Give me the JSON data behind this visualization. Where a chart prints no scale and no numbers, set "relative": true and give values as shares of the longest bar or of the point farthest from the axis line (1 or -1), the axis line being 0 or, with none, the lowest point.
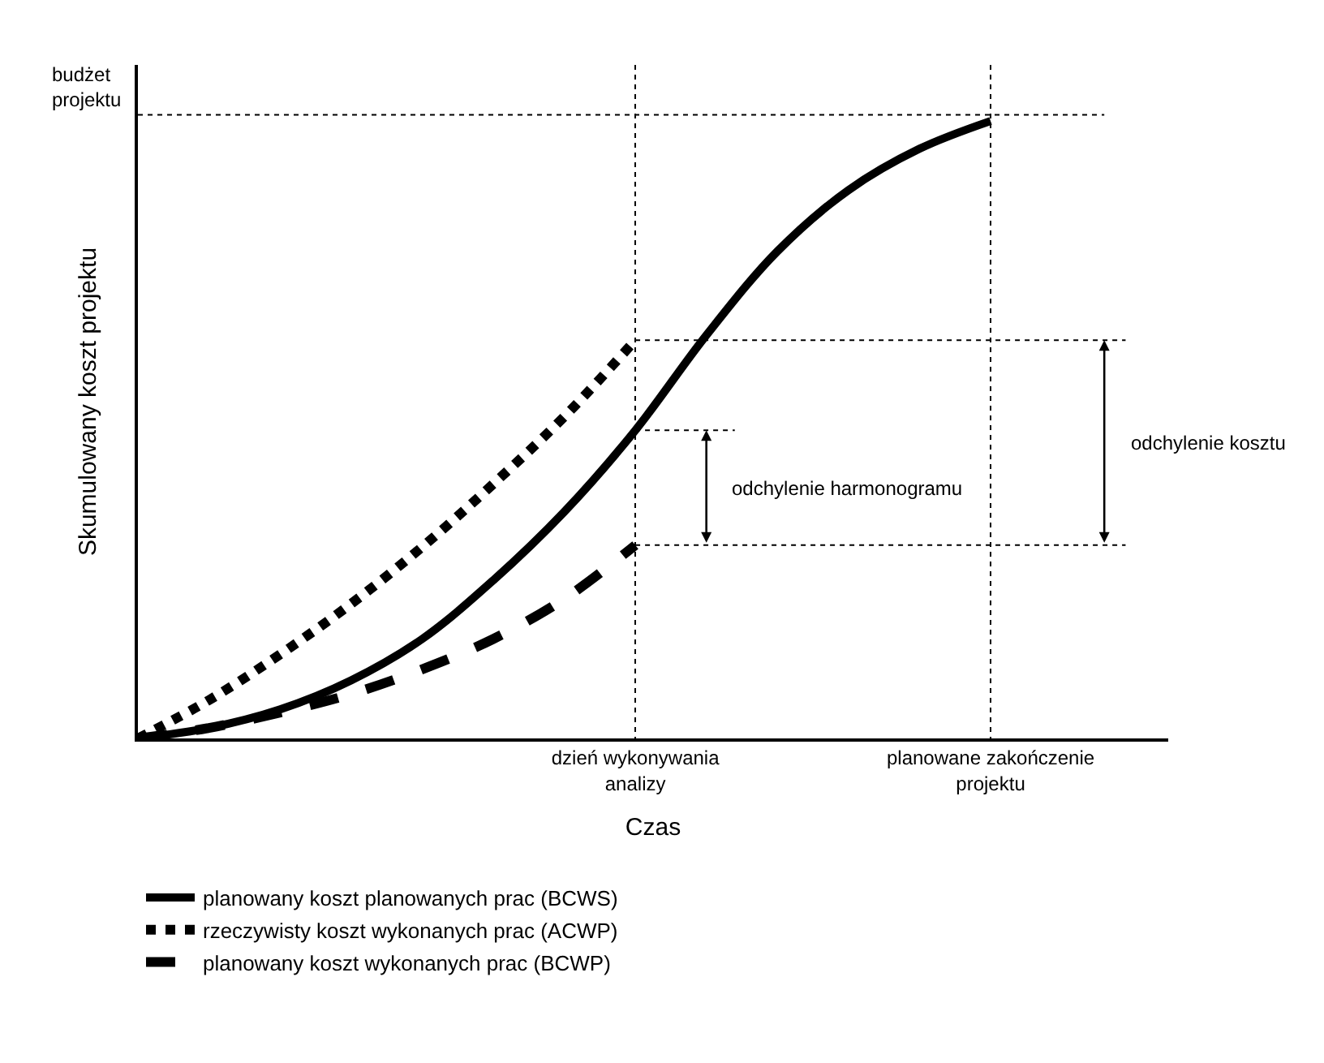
{
  "chart_data": {
    "type": "line",
    "relative": true,
    "xlabel": "Czas",
    "ylabel": "Skumulowany koszt projektu",
    "categories": [
      null,
      null,
      null,
      null,
      null,
      null,
      null,
      "dzień wykonywania\nanalizy",
      null,
      null,
      null,
      null,
      "planowane zakończenie\nprojektu",
      null,
      null
    ],
    "grid": "x",
    "legend": "bottom",
    "marker": "none",
    "ref_lines": [
      {
        "axis": "y",
        "value": 1.01,
        "label": "budżet\nprojektu",
        "line_style": "dotted",
        "color": "#000000"
      },
      {
        "axis": "y",
        "value": 0.645,
        "line_style": "dotted",
        "color": "#000000"
      },
      {
        "axis": "y",
        "value": 0.499,
        "line_style": "dotted",
        "color": "#000000"
      },
      {
        "axis": "y",
        "value": 0.313,
        "line_style": "dotted",
        "color": "#000000"
      }
    ],
    "annotations": [
      "odchylenie harmonogramu",
      "odchylenie kosztu"
    ],
    "series": [
      {
        "name": "planowany koszt planowanych prac (BCWS)",
        "color": "#000000",
        "line_style": "solid",
        "values": [
          0,
          0.017,
          0.047,
          0.094,
          0.161,
          0.256,
          0.367,
          0.499,
          0.653,
          0.789,
          0.888,
          0.955,
          1.0,
          null,
          null
        ]
      },
      {
        "name": "rzeczywisty koszt wykonanych prac (ACWP)",
        "color": "#000000",
        "line_style": "dotted",
        "values": [
          0,
          0.062,
          0.136,
          0.218,
          0.31,
          0.412,
          0.521,
          0.645,
          null,
          null,
          null,
          null,
          null,
          null,
          null
        ]
      },
      {
        "name": "planowany koszt wykonanych prac (BCWP)",
        "color": "#000000",
        "line_style": "dashed",
        "values": [
          0,
          0.017,
          0.042,
          0.072,
          0.112,
          0.161,
          0.226,
          0.313,
          null,
          null,
          null,
          null,
          null,
          null,
          null
        ]
      }
    ]
  }
}
